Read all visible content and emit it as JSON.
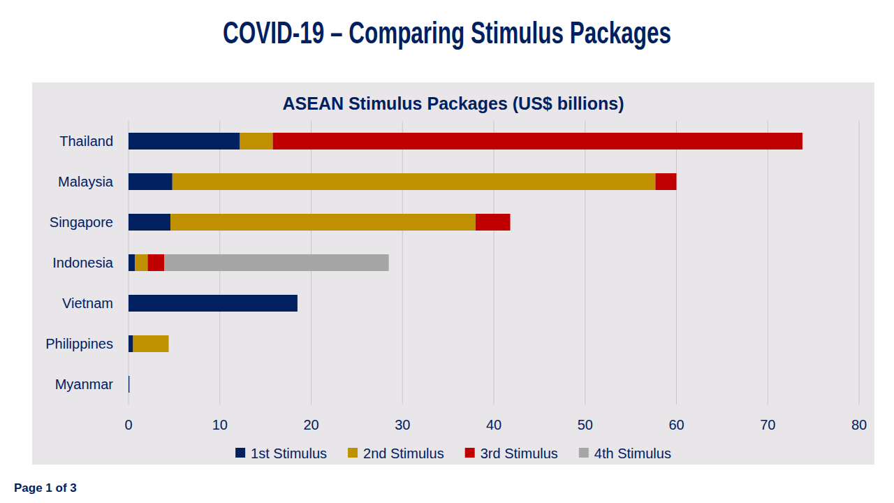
{
  "page": {
    "title": "COVID-19 – Comparing Stimulus Packages",
    "footer": "Page 1 of 3"
  },
  "chart_data": {
    "type": "bar",
    "title": "ASEAN Stimulus Packages (US$ billions)",
    "orientation": "horizontal",
    "stacked": true,
    "grid": true,
    "legend": "bottom",
    "categories": [
      "Thailand",
      "Malaysia",
      "Singapore",
      "Indonesia",
      "Vietnam",
      "Philippines",
      "Myanmar"
    ],
    "series": [
      {
        "name": "1st Stimulus",
        "color": "#002060",
        "values": [
          12.2,
          4.8,
          4.6,
          0.7,
          18.5,
          0.5,
          0.1
        ]
      },
      {
        "name": "2nd Stimulus",
        "color": "#bf9000",
        "values": [
          3.6,
          52.9,
          33.4,
          1.4,
          null,
          3.9,
          null
        ]
      },
      {
        "name": "3rd Stimulus",
        "color": "#c00000",
        "values": [
          58.0,
          2.3,
          3.8,
          1.8,
          null,
          null,
          null
        ]
      },
      {
        "name": "4th Stimulus",
        "color": "#a6a6a6",
        "values": [
          null,
          null,
          null,
          24.6,
          null,
          null,
          null
        ]
      }
    ],
    "xlim": [
      0,
      80
    ],
    "xticks": [
      0,
      10,
      20,
      30,
      40,
      50,
      60,
      70,
      80
    ]
  }
}
